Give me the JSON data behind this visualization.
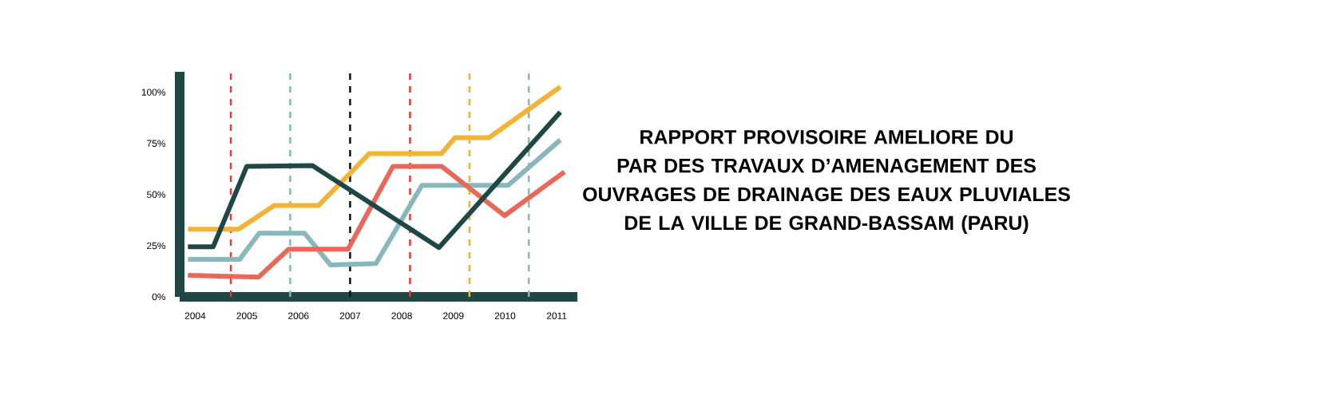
{
  "chart_data": {
    "type": "line",
    "title": "RAPPORT PROVISOIRE AMELIORE DU PAR DES TRAVAUX D’AMENAGEMENT DES OUVRAGES DE DRAINAGE DES EAUX PLUVIALES DE LA VILLE DE GRAND-BASSAM (PARU)",
    "xlim": [
      2003.7,
      2011.4
    ],
    "ylim": [
      0,
      110
    ],
    "xticks": [
      2004,
      2005,
      2006,
      2007,
      2008,
      2009,
      2010,
      2011
    ],
    "yticks": [
      {
        "value": 0,
        "label": "0%"
      },
      {
        "value": 25,
        "label": "25%"
      },
      {
        "value": 50,
        "label": "50%"
      },
      {
        "value": 75,
        "label": "75%"
      },
      {
        "value": 100,
        "label": "100%"
      }
    ],
    "marker": "none",
    "line_style": "solid",
    "series": [
      {
        "color": "#88b8bb",
        "x": [
          2003.86,
          2004.86,
          2005.24,
          2006.12,
          2006.62,
          2007.5,
          2008.39,
          2010.06,
          2011.07
        ],
        "values": [
          18.3,
          18.3,
          31.1,
          31.1,
          15.6,
          16.3,
          54.5,
          54.5,
          76.7
        ]
      },
      {
        "color": "#e8685a",
        "x": [
          2003.86,
          2005.23,
          2005.81,
          2006.96,
          2007.83,
          2008.77,
          2009.99,
          2011.15
        ],
        "values": [
          10.5,
          9.7,
          23.3,
          23.3,
          63.8,
          63.8,
          39.7,
          61.1
        ]
      },
      {
        "color": "#f5b335",
        "x": [
          2003.86,
          2004.84,
          2005.53,
          2006.39,
          2007.37,
          2008.77,
          2009.03,
          2009.69,
          2011.07
        ],
        "values": [
          33.1,
          33.1,
          44.7,
          44.7,
          70.0,
          70.0,
          77.8,
          77.8,
          102.7
        ]
      },
      {
        "color": "#1e4745",
        "x": [
          2003.86,
          2004.35,
          2005.0,
          2006.27,
          2008.72,
          2011.07
        ],
        "values": [
          24.5,
          24.5,
          63.8,
          64.2,
          24.1,
          90.3
        ]
      }
    ],
    "ref_lines": [
      {
        "axis": "x",
        "value": 2004.69,
        "color": "#e8383f",
        "line_style": "dashed"
      },
      {
        "axis": "x",
        "value": 2005.84,
        "color": "#88b8bb",
        "line_style": "dashed"
      },
      {
        "axis": "x",
        "value": 2007.0,
        "color": "#111111",
        "line_style": "dashed"
      },
      {
        "axis": "x",
        "value": 2008.16,
        "color": "#e8383f",
        "line_style": "dashed"
      },
      {
        "axis": "x",
        "value": 2009.31,
        "color": "#f5b335",
        "line_style": "dashed"
      },
      {
        "axis": "x",
        "value": 2010.46,
        "color": "#88b8bb",
        "line_style": "dashed"
      }
    ]
  }
}
